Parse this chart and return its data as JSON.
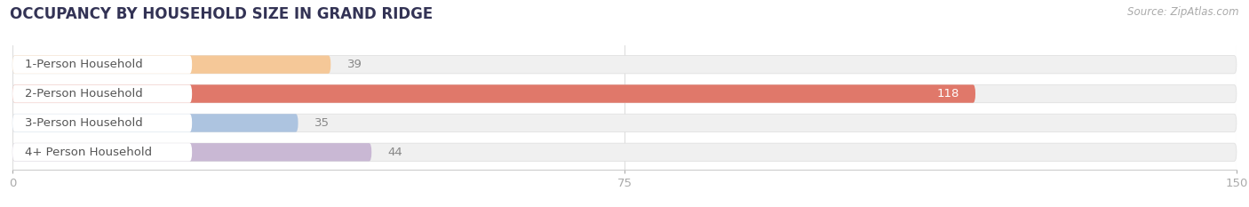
{
  "title": "OCCUPANCY BY HOUSEHOLD SIZE IN GRAND RIDGE",
  "source": "Source: ZipAtlas.com",
  "categories": [
    "1-Person Household",
    "2-Person Household",
    "3-Person Household",
    "4+ Person Household"
  ],
  "values": [
    39,
    118,
    35,
    44
  ],
  "bar_colors": [
    "#f5c898",
    "#e0786a",
    "#adc4e0",
    "#c9b8d4"
  ],
  "bar_bg_color": "#f0f0f0",
  "bar_border_color": "#dddddd",
  "xlim": [
    0,
    150
  ],
  "xticks": [
    0,
    75,
    150
  ],
  "title_fontsize": 12,
  "label_fontsize": 9.5,
  "value_fontsize": 9.5,
  "bar_height": 0.62,
  "figsize": [
    14.06,
    2.33
  ],
  "dpi": 100,
  "label_color": "#555555",
  "value_color_white": "#ffffff",
  "value_color_dark": "#888888",
  "bg_color": "#ffffff",
  "source_fontsize": 8.5,
  "title_color": "#333355"
}
